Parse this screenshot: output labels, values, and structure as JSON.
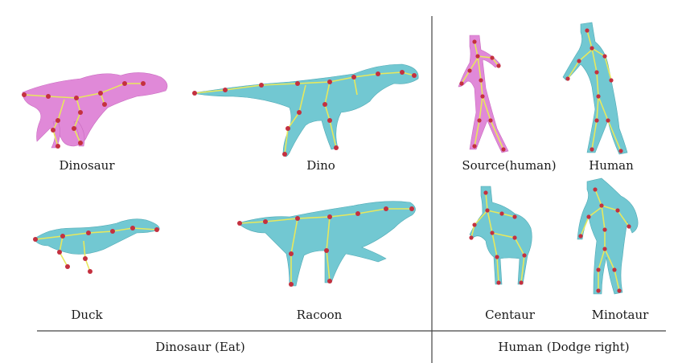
{
  "figure": {
    "colors": {
      "source_mesh": "#e089d8",
      "target_mesh": "#72c8d2",
      "joint": "#c4303f",
      "bone": "#e8e85c",
      "line": "#444444"
    },
    "labels": {
      "dinosaur": "Dinosaur",
      "dino": "Dino",
      "duck": "Duck",
      "racoon": "Racoon",
      "source_human": "Source(human)",
      "human": "Human",
      "centaur": "Centaur",
      "minotaur": "Minotaur"
    },
    "captions": {
      "left": "Dinosaur (Eat)",
      "right": "Human (Dodge right)"
    }
  }
}
